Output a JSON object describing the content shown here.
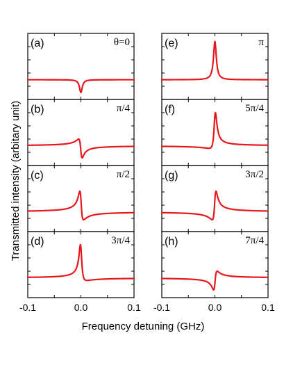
{
  "chart_data": {
    "type": "line",
    "xlabel": "Frequency detuning (GHz)",
    "ylabel": "Transmitted intensity (arbitary unit)",
    "xlim": [
      -0.1,
      0.1
    ],
    "x_ticks": [
      "-0.1",
      "0.0",
      "0.1"
    ],
    "grid": false,
    "line_color": "#e8151b",
    "panels": [
      {
        "label": "(a)",
        "phase": "θ=0",
        "theta_pi": 0.0,
        "column": 0,
        "row": 0
      },
      {
        "label": "(b)",
        "phase": "π/4",
        "theta_pi": 0.25,
        "column": 0,
        "row": 1
      },
      {
        "label": "(c)",
        "phase": "π/2",
        "theta_pi": 0.5,
        "column": 0,
        "row": 2
      },
      {
        "label": "(d)",
        "phase": "3π/4",
        "theta_pi": 0.75,
        "column": 0,
        "row": 3
      },
      {
        "label": "(e)",
        "phase": "π",
        "theta_pi": 1.0,
        "column": 1,
        "row": 0
      },
      {
        "label": "(f)",
        "phase": "5π/4",
        "theta_pi": 1.25,
        "column": 1,
        "row": 1
      },
      {
        "label": "(g)",
        "phase": "3π/2",
        "theta_pi": 1.5,
        "column": 1,
        "row": 2
      },
      {
        "label": "(h)",
        "phase": "7π/4",
        "theta_pi": 1.75,
        "column": 1,
        "row": 3
      }
    ]
  }
}
